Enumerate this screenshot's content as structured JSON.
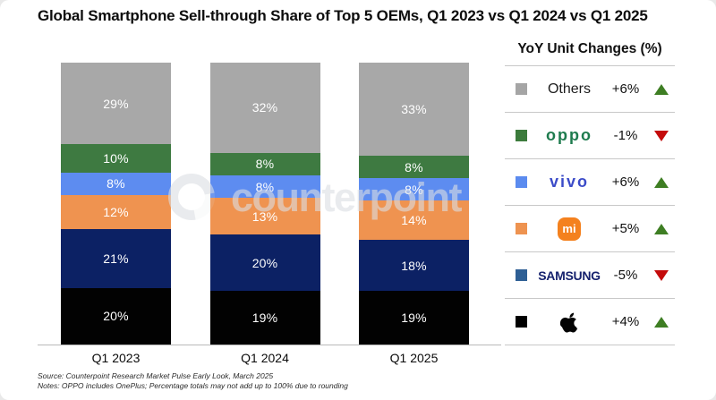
{
  "title": "Global Smartphone Sell-through Share of Top 5 OEMs, Q1 2023 vs Q1 2024 vs Q1 2025",
  "watermark_text": "counterpoint",
  "chart_data": {
    "type": "bar",
    "subtype": "stacked-100-percent",
    "title": "Global Smartphone Sell-through Share of Top 5 OEMs, Q1 2023 vs Q1 2024 vs Q1 2025",
    "categories": [
      "Q1 2023",
      "Q1 2024",
      "Q1 2025"
    ],
    "unit": "%",
    "ylim": [
      0,
      100
    ],
    "grid": false,
    "legend_position": "right",
    "stack_order_top_to_bottom": [
      "Others",
      "OPPO",
      "vivo",
      "Xiaomi",
      "Samsung",
      "Apple"
    ],
    "series": [
      {
        "name": "Others",
        "color": "#a8a8a8",
        "values": [
          29,
          32,
          33
        ]
      },
      {
        "name": "OPPO",
        "color": "#3e7a41",
        "values": [
          10,
          8,
          8
        ]
      },
      {
        "name": "vivo",
        "color": "#5d8cf0",
        "values": [
          8,
          8,
          8
        ]
      },
      {
        "name": "Xiaomi",
        "color": "#ef9350",
        "values": [
          12,
          13,
          14
        ]
      },
      {
        "name": "Samsung",
        "color": "#0c2164",
        "values": [
          21,
          20,
          18
        ]
      },
      {
        "name": "Apple",
        "color": "#020202",
        "values": [
          20,
          19,
          19
        ]
      }
    ]
  },
  "legend": {
    "title": "YoY Unit Changes (%)",
    "rows": [
      {
        "brand": "Others",
        "label": "Others",
        "change": "+6%",
        "direction": "up",
        "square_color": "#a5a5a5"
      },
      {
        "brand": "OPPO",
        "label": "oppo",
        "change": "-1%",
        "direction": "down",
        "square_color": "#3c7b3c"
      },
      {
        "brand": "vivo",
        "label": "vivo",
        "change": "+6%",
        "direction": "up",
        "square_color": "#5b8bef"
      },
      {
        "brand": "Xiaomi",
        "label": "mi",
        "change": "+5%",
        "direction": "up",
        "square_color": "#ee9350"
      },
      {
        "brand": "Samsung",
        "label": "SAMSUNG",
        "change": "-5%",
        "direction": "down",
        "square_color": "#2e5f94"
      },
      {
        "brand": "Apple",
        "label": "",
        "change": "+4%",
        "direction": "up",
        "square_color": "#000000"
      }
    ]
  },
  "footer": {
    "source": "Source: Counterpoint Research Market Pulse Early Look, March 2025",
    "notes": "Notes: OPPO includes OnePlus; Percentage totals may not add up to 100% due to rounding"
  }
}
